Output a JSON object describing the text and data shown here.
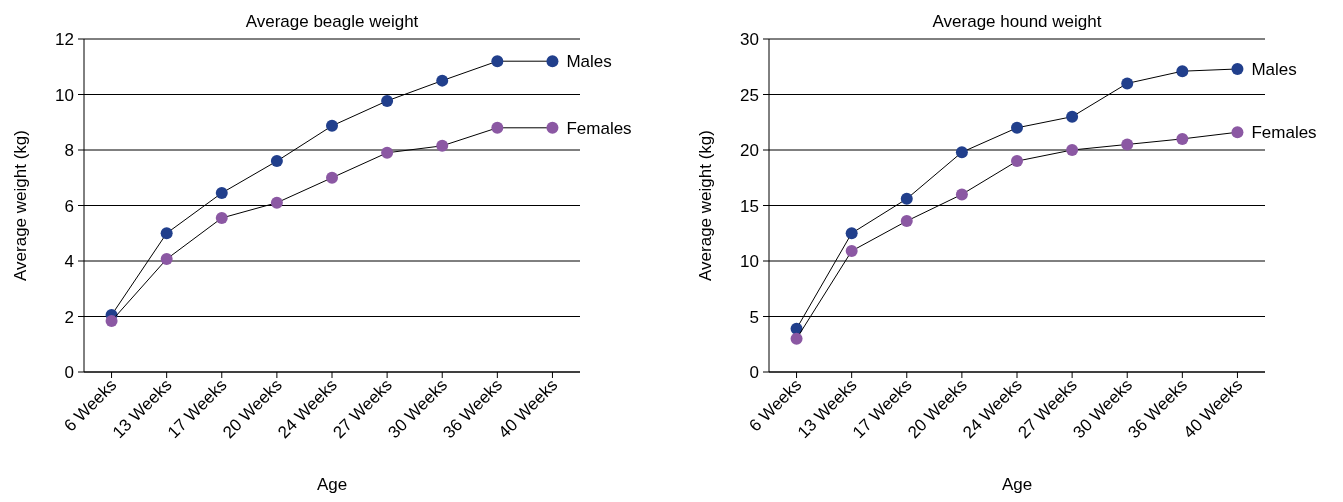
{
  "chart_data": [
    {
      "type": "line",
      "title": "Average beagle weight",
      "xlabel": "Age",
      "ylabel": "Average weight (kg)",
      "categories": [
        "6 Weeks",
        "13 Weeks",
        "17 Weeks",
        "20 Weeks",
        "24 Weeks",
        "27 Weeks",
        "30 Weeks",
        "36 Weeks",
        "40 Weeks"
      ],
      "ylim": [
        0,
        12
      ],
      "yticks": [
        0,
        2,
        4,
        6,
        8,
        10,
        12
      ],
      "grid": "y",
      "marker": "circle",
      "line_style": "solid",
      "series": [
        {
          "name": "Males",
          "color": "#213f8c",
          "values": [
            2.05,
            5.0,
            6.45,
            7.6,
            8.87,
            9.77,
            10.5,
            11.2,
            11.2
          ]
        },
        {
          "name": "Females",
          "color": "#8b58a3",
          "values": [
            1.84,
            4.07,
            5.55,
            6.1,
            7.0,
            7.9,
            8.15,
            8.8,
            8.8
          ]
        }
      ]
    },
    {
      "type": "line",
      "title": "Average hound weight",
      "xlabel": "Age",
      "ylabel": "Average weight (kg)",
      "categories": [
        "6 Weeks",
        "13 Weeks",
        "17 Weeks",
        "20 Weeks",
        "24 Weeks",
        "27 Weeks",
        "30 Weeks",
        "36 Weeks",
        "40 Weeks"
      ],
      "ylim": [
        0,
        30
      ],
      "yticks": [
        0,
        5,
        10,
        15,
        20,
        25,
        30
      ],
      "grid": "y",
      "marker": "circle",
      "line_style": "solid",
      "series": [
        {
          "name": "Males",
          "color": "#213f8c",
          "values": [
            3.9,
            12.5,
            15.6,
            19.8,
            22.0,
            23.0,
            26.0,
            27.1,
            27.3
          ]
        },
        {
          "name": "Females",
          "color": "#8b58a3",
          "values": [
            3.0,
            10.9,
            13.6,
            16.0,
            19.0,
            20.0,
            20.5,
            21.0,
            21.6
          ]
        }
      ]
    }
  ]
}
